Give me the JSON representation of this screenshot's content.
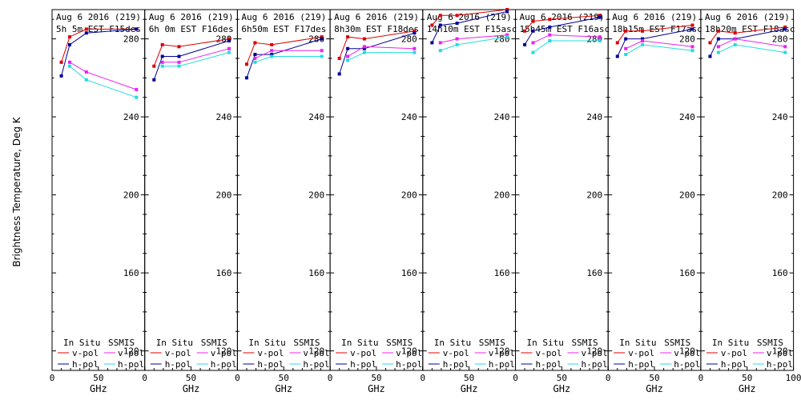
{
  "ylabel": "Brightness Temperature, Deg K",
  "xlabel": "GHz",
  "colors": {
    "insitu_v": "#dd0000",
    "insitu_h": "#000099",
    "ssmis_v": "#ee22ee",
    "ssmis_h": "#22dddd",
    "axis": "#000000"
  },
  "legend": {
    "insitu_heading": "In Situ",
    "ssmis_heading": "SSMIS",
    "vpol": "v-pol",
    "hpol": "h-pol"
  },
  "chart_data": [
    {
      "type": "line",
      "title_line1": "Aug 6 2016 (219)",
      "title_line2": "5h 5m  EST F15des",
      "xlim": [
        0,
        100
      ],
      "ylim": [
        110,
        295
      ],
      "xticks": [
        "0",
        "50",
        "100"
      ],
      "yticks": [
        "280",
        "240",
        "200",
        "160",
        "120"
      ],
      "series": [
        {
          "name": "In Situ v-pol",
          "x": [
            10,
            19,
            37,
            91
          ],
          "y": [
            268,
            281,
            285,
            285
          ]
        },
        {
          "name": "In Situ h-pol",
          "x": [
            10,
            19,
            37,
            91
          ],
          "y": [
            261,
            277,
            283,
            285
          ]
        },
        {
          "name": "SSMIS v-pol",
          "x": [
            19,
            37,
            91
          ],
          "y": [
            268,
            263,
            254
          ]
        },
        {
          "name": "SSMIS h-pol",
          "x": [
            19,
            37,
            91
          ],
          "y": [
            266,
            259,
            250
          ]
        }
      ]
    },
    {
      "type": "line",
      "title_line1": "Aug 6 2016 (219)",
      "title_line2": "6h 0m  EST F16des",
      "xlim": [
        0,
        100
      ],
      "ylim": [
        110,
        295
      ],
      "xticks": [
        "0",
        "50",
        "100"
      ],
      "yticks": [
        "280",
        "240",
        "200",
        "160",
        "120"
      ],
      "series": [
        {
          "name": "In Situ v-pol",
          "x": [
            10,
            19,
            37,
            91
          ],
          "y": [
            266,
            277,
            276,
            280
          ]
        },
        {
          "name": "In Situ h-pol",
          "x": [
            10,
            19,
            37,
            91
          ],
          "y": [
            259,
            271,
            271,
            279
          ]
        },
        {
          "name": "SSMIS v-pol",
          "x": [
            19,
            37,
            91
          ],
          "y": [
            268,
            268,
            275
          ]
        },
        {
          "name": "SSMIS h-pol",
          "x": [
            19,
            37,
            91
          ],
          "y": [
            266,
            266,
            273
          ]
        }
      ]
    },
    {
      "type": "line",
      "title_line1": "Aug 6 2016 (219)",
      "title_line2": "6h50m  EST F17des",
      "xlim": [
        0,
        100
      ],
      "ylim": [
        110,
        295
      ],
      "xticks": [
        "0",
        "50",
        "100"
      ],
      "yticks": [
        "280",
        "240",
        "200",
        "160",
        "120"
      ],
      "series": [
        {
          "name": "In Situ v-pol",
          "x": [
            10,
            19,
            37,
            91
          ],
          "y": [
            267,
            278,
            277,
            281
          ]
        },
        {
          "name": "In Situ h-pol",
          "x": [
            10,
            19,
            37,
            91
          ],
          "y": [
            260,
            272,
            272,
            280
          ]
        },
        {
          "name": "SSMIS v-pol",
          "x": [
            19,
            37,
            91
          ],
          "y": [
            270,
            274,
            274
          ]
        },
        {
          "name": "SSMIS h-pol",
          "x": [
            19,
            37,
            91
          ],
          "y": [
            268,
            271,
            271
          ]
        }
      ]
    },
    {
      "type": "line",
      "title_line1": "Aug 6 2016 (219)",
      "title_line2": "8h30m  EST F18des",
      "xlim": [
        0,
        100
      ],
      "ylim": [
        110,
        295
      ],
      "xticks": [
        "0",
        "50",
        "100"
      ],
      "yticks": [
        "280",
        "240",
        "200",
        "160",
        "120"
      ],
      "series": [
        {
          "name": "In Situ v-pol",
          "x": [
            10,
            19,
            37,
            91
          ],
          "y": [
            270,
            281,
            280,
            284
          ]
        },
        {
          "name": "In Situ h-pol",
          "x": [
            10,
            19,
            37,
            91
          ],
          "y": [
            262,
            275,
            275,
            283
          ]
        },
        {
          "name": "SSMIS v-pol",
          "x": [
            19,
            37,
            91
          ],
          "y": [
            271,
            276,
            275
          ]
        },
        {
          "name": "SSMIS h-pol",
          "x": [
            19,
            37,
            91
          ],
          "y": [
            269,
            273,
            273
          ]
        }
      ]
    },
    {
      "type": "line",
      "title_line1": "Aug 6 2016 (219)",
      "title_line2": "14h10m  EST F15asc",
      "xlim": [
        0,
        100
      ],
      "ylim": [
        110,
        295
      ],
      "xticks": [
        "0",
        "50",
        "100"
      ],
      "yticks": [
        "280",
        "240",
        "200",
        "160",
        "120"
      ],
      "series": [
        {
          "name": "In Situ v-pol",
          "x": [
            10,
            19,
            37,
            91
          ],
          "y": [
            287,
            292,
            292,
            295
          ]
        },
        {
          "name": "In Situ h-pol",
          "x": [
            10,
            19,
            37,
            91
          ],
          "y": [
            278,
            287,
            288,
            294
          ]
        },
        {
          "name": "SSMIS v-pol",
          "x": [
            19,
            37,
            91
          ],
          "y": [
            278,
            280,
            282
          ]
        },
        {
          "name": "SSMIS h-pol",
          "x": [
            19,
            37,
            91
          ],
          "y": [
            274,
            277,
            281
          ]
        }
      ]
    },
    {
      "type": "line",
      "title_line1": "Aug 6 2016 (219)",
      "title_line2": "15h45m  EST F16asc",
      "xlim": [
        0,
        100
      ],
      "ylim": [
        110,
        295
      ],
      "xticks": [
        "0",
        "50",
        "100"
      ],
      "yticks": [
        "280",
        "240",
        "200",
        "160",
        "120"
      ],
      "series": [
        {
          "name": "In Situ v-pol",
          "x": [
            10,
            19,
            37,
            91
          ],
          "y": [
            284,
            289,
            290,
            292
          ]
        },
        {
          "name": "In Situ h-pol",
          "x": [
            10,
            19,
            37,
            91
          ],
          "y": [
            277,
            284,
            286,
            291
          ]
        },
        {
          "name": "SSMIS v-pol",
          "x": [
            19,
            37,
            91
          ],
          "y": [
            278,
            282,
            281
          ]
        },
        {
          "name": "SSMIS h-pol",
          "x": [
            19,
            37,
            91
          ],
          "y": [
            273,
            279,
            279
          ]
        }
      ]
    },
    {
      "type": "line",
      "title_line1": "Aug 6 2016 (219)",
      "title_line2": "18h15m  EST F17asc",
      "xlim": [
        0,
        100
      ],
      "ylim": [
        110,
        295
      ],
      "xticks": [
        "0",
        "50",
        "100"
      ],
      "yticks": [
        "280",
        "240",
        "200",
        "160",
        "120"
      ],
      "series": [
        {
          "name": "In Situ v-pol",
          "x": [
            10,
            19,
            37,
            91
          ],
          "y": [
            278,
            284,
            284,
            287
          ]
        },
        {
          "name": "In Situ h-pol",
          "x": [
            10,
            19,
            37,
            91
          ],
          "y": [
            271,
            280,
            280,
            285
          ]
        },
        {
          "name": "SSMIS v-pol",
          "x": [
            19,
            37,
            91
          ],
          "y": [
            275,
            279,
            276
          ]
        },
        {
          "name": "SSMIS h-pol",
          "x": [
            19,
            37,
            91
          ],
          "y": [
            272,
            277,
            274
          ]
        }
      ]
    },
    {
      "type": "line",
      "title_line1": "Aug 6 2016 (219)",
      "title_line2": "18h20m  EST F18asc",
      "xlim": [
        0,
        100
      ],
      "ylim": [
        110,
        295
      ],
      "xticks": [
        "0",
        "50",
        "100"
      ],
      "yticks": [
        "280",
        "240",
        "200",
        "160",
        "120"
      ],
      "series": [
        {
          "name": "In Situ v-pol",
          "x": [
            10,
            19,
            37,
            91
          ],
          "y": [
            278,
            284,
            283,
            286
          ]
        },
        {
          "name": "In Situ h-pol",
          "x": [
            10,
            19,
            37,
            91
          ],
          "y": [
            271,
            280,
            280,
            285
          ]
        },
        {
          "name": "SSMIS v-pol",
          "x": [
            19,
            37,
            91
          ],
          "y": [
            276,
            280,
            276
          ]
        },
        {
          "name": "SSMIS h-pol",
          "x": [
            19,
            37,
            91
          ],
          "y": [
            273,
            277,
            273
          ]
        }
      ]
    }
  ]
}
